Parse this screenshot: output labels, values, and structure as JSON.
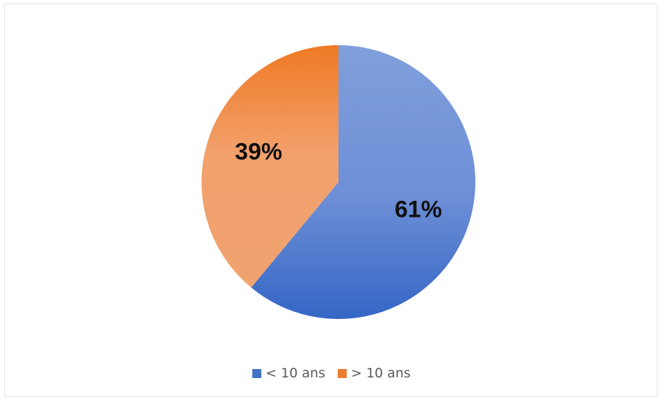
{
  "chart_data": {
    "type": "pie",
    "categories": [
      "< 10 ans",
      "> 10 ans"
    ],
    "values": [
      61,
      39
    ],
    "data_labels": [
      "61%",
      "39%"
    ],
    "colors": [
      "#4472C4",
      "#ED7D31"
    ],
    "legend_position": "bottom",
    "title": "",
    "start_angle_deg": 0,
    "direction": "clockwise"
  },
  "legend": {
    "items": [
      {
        "label": "< 10 ans",
        "color": "#4472C4"
      },
      {
        "label": "> 10 ans",
        "color": "#ED7D31"
      }
    ]
  }
}
